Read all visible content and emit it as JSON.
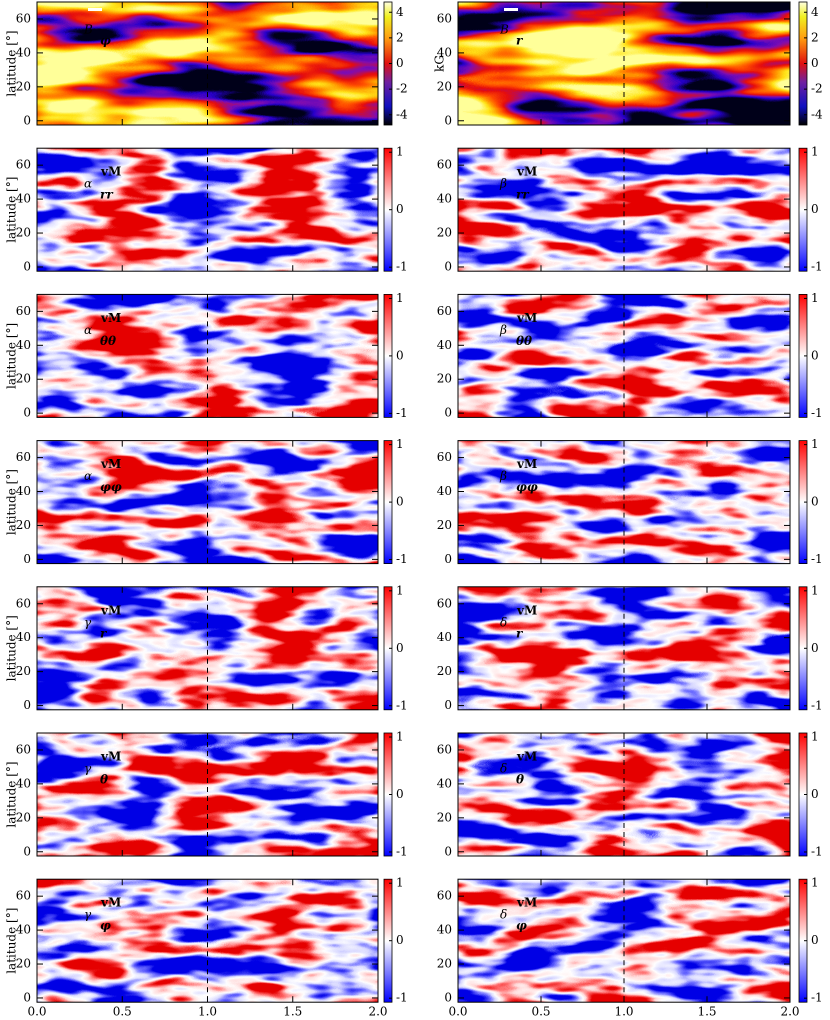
{
  "figure": {
    "ylabel": "latitude [°]",
    "xlim": [
      0,
      2
    ],
    "xticks": [
      {
        "value": 0,
        "label": "0.0"
      },
      {
        "value": 0.5,
        "label": "0.5"
      },
      {
        "value": 1,
        "label": "1.0"
      },
      {
        "value": 1.5,
        "label": "1.5"
      },
      {
        "value": 2,
        "label": "2.0"
      }
    ],
    "ylim": [
      -2.5,
      70
    ],
    "yticks": [
      0,
      20,
      40,
      60
    ],
    "marker_x": 1,
    "panels": [
      {
        "symbol": "B",
        "subscript": "φ",
        "cbar_lim": [
          -4.8,
          4.8
        ],
        "cbar_ticks": [
          -4,
          -2,
          0,
          2,
          4
        ],
        "cbar_label": "kG"
      },
      {
        "symbol": "B",
        "subscript": "r",
        "cbar_lim": [
          -4.8,
          4.8
        ],
        "cbar_ticks": [
          -4,
          -2,
          0,
          2,
          4
        ]
      },
      {
        "symbol": "α",
        "subscript": "rr",
        "superscript": "vM",
        "cbar_lim": [
          -1.07,
          1.07
        ],
        "cbar_ticks": [
          -1,
          0,
          1
        ]
      },
      {
        "symbol": "β",
        "subscript": "rr",
        "superscript": "vM",
        "cbar_lim": [
          -1.07,
          1.07
        ],
        "cbar_ticks": [
          -1,
          0,
          1
        ]
      },
      {
        "symbol": "α",
        "subscript": "θθ",
        "superscript": "vM",
        "cbar_lim": [
          -1.07,
          1.07
        ],
        "cbar_ticks": [
          -1,
          0,
          1
        ]
      },
      {
        "symbol": "β",
        "subscript": "θθ",
        "superscript": "vM",
        "cbar_lim": [
          -1.07,
          1.07
        ],
        "cbar_ticks": [
          -1,
          0,
          1
        ]
      },
      {
        "symbol": "α",
        "subscript": "φφ",
        "superscript": "vM",
        "cbar_lim": [
          -1.07,
          1.07
        ],
        "cbar_ticks": [
          -1,
          0,
          1
        ]
      },
      {
        "symbol": "β",
        "subscript": "φφ",
        "superscript": "vM",
        "cbar_lim": [
          -1.07,
          1.07
        ],
        "cbar_ticks": [
          -1,
          0,
          1
        ]
      },
      {
        "symbol": "γ",
        "subscript": "r",
        "superscript": "vM",
        "cbar_lim": [
          -1.07,
          1.07
        ],
        "cbar_ticks": [
          -1,
          0,
          1
        ]
      },
      {
        "symbol": "δ",
        "subscript": "r",
        "superscript": "vM",
        "cbar_lim": [
          -1.07,
          1.07
        ],
        "cbar_ticks": [
          -1,
          0,
          1
        ]
      },
      {
        "symbol": "γ",
        "subscript": "θ",
        "superscript": "vM",
        "cbar_lim": [
          -1.07,
          1.07
        ],
        "cbar_ticks": [
          -1,
          0,
          1
        ]
      },
      {
        "symbol": "δ",
        "subscript": "θ",
        "superscript": "vM",
        "cbar_lim": [
          -1.07,
          1.07
        ],
        "cbar_ticks": [
          -1,
          0,
          1
        ]
      },
      {
        "symbol": "γ",
        "subscript": "φ",
        "superscript": "vM",
        "cbar_lim": [
          -1.07,
          1.07
        ],
        "cbar_ticks": [
          -1,
          0,
          1
        ]
      },
      {
        "symbol": "δ",
        "subscript": "φ",
        "superscript": "vM",
        "cbar_lim": [
          -1.07,
          1.07
        ],
        "cbar_ticks": [
          -1,
          0,
          1
        ]
      }
    ]
  }
}
